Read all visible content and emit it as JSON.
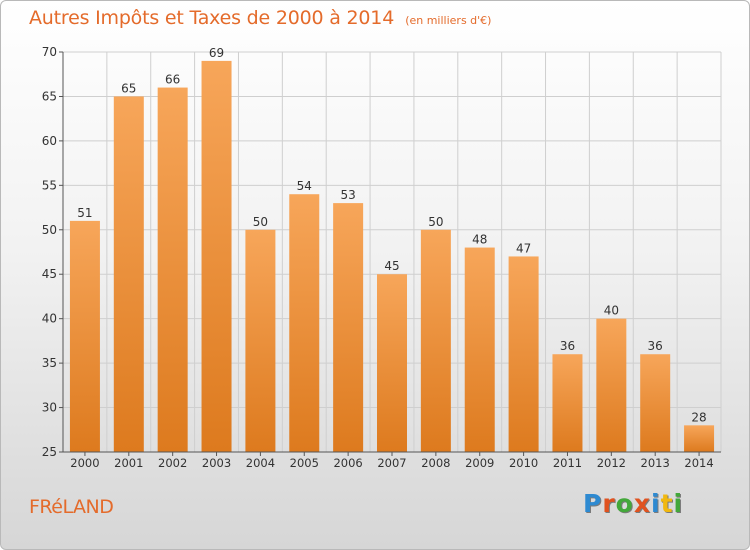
{
  "title": "Autres Impôts et Taxes de 2000 à 2014",
  "subtitle": "(en milliers d'€)",
  "commune": "FRéLAND",
  "logo": {
    "letters": [
      "P",
      "r",
      "o",
      "x",
      "i",
      "t",
      "i"
    ],
    "colors": [
      "#2e8ad1",
      "#e0521f",
      "#43a83a",
      "#e0521f",
      "#2e8ad1",
      "#f1b80f",
      "#43a83a"
    ]
  },
  "colors": {
    "title": "#e46b2b",
    "bar_top": "#f7a65a",
    "bar_bottom": "#dd7a1e",
    "grid": "#cfcfcf",
    "axis": "#555555"
  },
  "chart_data": {
    "type": "bar",
    "categories": [
      "2000",
      "2001",
      "2002",
      "2003",
      "2004",
      "2005",
      "2006",
      "2007",
      "2008",
      "2009",
      "2010",
      "2011",
      "2012",
      "2013",
      "2014"
    ],
    "values": [
      51,
      65,
      66,
      69,
      50,
      54,
      53,
      45,
      50,
      48,
      47,
      36,
      40,
      36,
      28
    ],
    "ylim": [
      25,
      70
    ],
    "yticks": [
      25,
      30,
      35,
      40,
      45,
      50,
      55,
      60,
      65,
      70
    ],
    "grid": true,
    "data_labels": true
  }
}
